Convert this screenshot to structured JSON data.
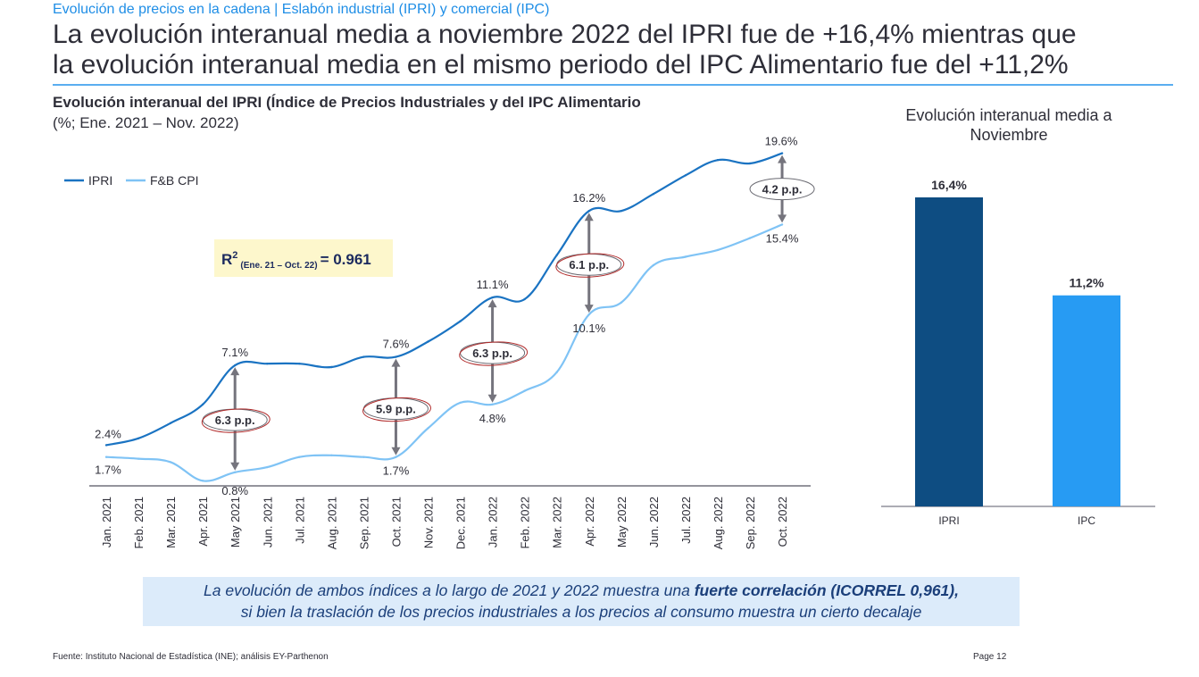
{
  "header": {
    "kicker": "Evolución de precios en la cadena | Eslabón industrial (IPRI) y comercial (IPC)",
    "headline_line1": "La evolución interanual media a noviembre 2022 del IPRI fue de +16,4% mientras que",
    "headline_line2": "la evolución interanual media en el mismo periodo del IPC Alimentario fue del +11,2%"
  },
  "colors": {
    "accent": "#1f8ee6",
    "ipri_line": "#1a73c2",
    "cpi_line": "#7fc3f5",
    "ipri_bar": "#0e4d82",
    "ipc_bar": "#279bf3",
    "arrow": "#75747d",
    "r2_box": "#fdf7cc",
    "callout_bg": "#dcebfa",
    "callout_text": "#1b3f7a",
    "annotation_circle": "#b12a2a"
  },
  "r2_box": {
    "label": "R",
    "superscript": "2",
    "subscript": "(Ene. 21 – Oct. 22)",
    "value": "= 0.961"
  },
  "chart_data": [
    {
      "type": "line",
      "title": "Evolución interanual del IPRI (Índice de Precios Industriales y del IPC Alimentario",
      "subtitle": "(%; Ene. 2021 – Nov. 2022)",
      "xlabel": "",
      "ylabel": "",
      "ylim": [
        0,
        21
      ],
      "grid": false,
      "legend": "top-left",
      "categories": [
        "Jan. 2021",
        "Feb. 2021",
        "Mar. 2021",
        "Apr. 2021",
        "May 2021",
        "Jun. 2021",
        "Jul. 2021",
        "Aug. 2021",
        "Sep. 2021",
        "Oct. 2021",
        "Nov. 2021",
        "Dec. 2021",
        "Jan. 2022",
        "Feb. 2022",
        "Mar. 2022",
        "Apr. 2022",
        "May 2022",
        "Jun. 2022",
        "Jul. 2022",
        "Aug. 2022",
        "Sep. 2022",
        "Oct. 2022"
      ],
      "series": [
        {
          "name": "IPRI",
          "values": [
            2.4,
            2.8,
            3.7,
            4.8,
            7.1,
            7.2,
            7.2,
            7.0,
            7.6,
            7.6,
            8.5,
            9.7,
            11.1,
            11.0,
            13.6,
            16.2,
            16.2,
            17.2,
            18.3,
            19.2,
            19.0,
            19.6
          ]
        },
        {
          "name": "F&B CPI",
          "values": [
            1.7,
            1.6,
            1.4,
            0.3,
            0.8,
            1.1,
            1.7,
            1.8,
            1.7,
            1.7,
            3.4,
            4.9,
            4.8,
            5.6,
            6.7,
            10.1,
            10.8,
            13.0,
            13.5,
            13.9,
            14.6,
            15.4
          ]
        }
      ],
      "data_labels": [
        {
          "series": "IPRI",
          "index": 0,
          "text": "2.4%"
        },
        {
          "series": "IPRI",
          "index": 4,
          "text": "7.1%"
        },
        {
          "series": "IPRI",
          "index": 9,
          "text": "7.6%"
        },
        {
          "series": "IPRI",
          "index": 12,
          "text": "11.1%"
        },
        {
          "series": "IPRI",
          "index": 15,
          "text": "16.2%"
        },
        {
          "series": "IPRI",
          "index": 21,
          "text": "19.6%"
        },
        {
          "series": "F&B CPI",
          "index": 0,
          "text": "1.7%"
        },
        {
          "series": "F&B CPI",
          "index": 4,
          "text": "0.8%"
        },
        {
          "series": "F&B CPI",
          "index": 9,
          "text": "1.7%"
        },
        {
          "series": "F&B CPI",
          "index": 12,
          "text": "4.8%"
        },
        {
          "series": "F&B CPI",
          "index": 15,
          "text": "10.1%"
        },
        {
          "series": "F&B CPI",
          "index": 21,
          "text": "15.4%"
        }
      ],
      "gap_annotations": [
        {
          "index": 4,
          "text": "6.3 p.p.",
          "circled_red": true
        },
        {
          "index": 9,
          "text": "5.9 p.p.",
          "circled_red": true
        },
        {
          "index": 12,
          "text": "6.3 p.p.",
          "circled_red": true
        },
        {
          "index": 15,
          "text": "6.1 p.p.",
          "circled_red": true
        },
        {
          "index": 21,
          "text": "4.2 p.p.",
          "circled_red": false
        }
      ]
    },
    {
      "type": "bar",
      "title": "Evolución interanual media a Noviembre",
      "categories": [
        "IPRI",
        "IPC"
      ],
      "values": [
        16.4,
        11.2
      ],
      "value_labels": [
        "16,4%",
        "11,2%"
      ],
      "ylim": [
        0,
        18
      ],
      "grid": false,
      "xlabel": "",
      "ylabel": ""
    }
  ],
  "callout": {
    "text_before": "La evolución de ambos índices a lo largo de 2021 y 2022 muestra una ",
    "text_bold": "fuerte correlación (ICORREL 0,961),",
    "text_line2": "si bien la traslación de los precios industriales a los precios al consumo muestra un cierto decalaje"
  },
  "footer": {
    "source": "Fuente: Instituto Nacional de Estadística (INE); análisis EY-Parthenon",
    "page": "Page 12"
  }
}
